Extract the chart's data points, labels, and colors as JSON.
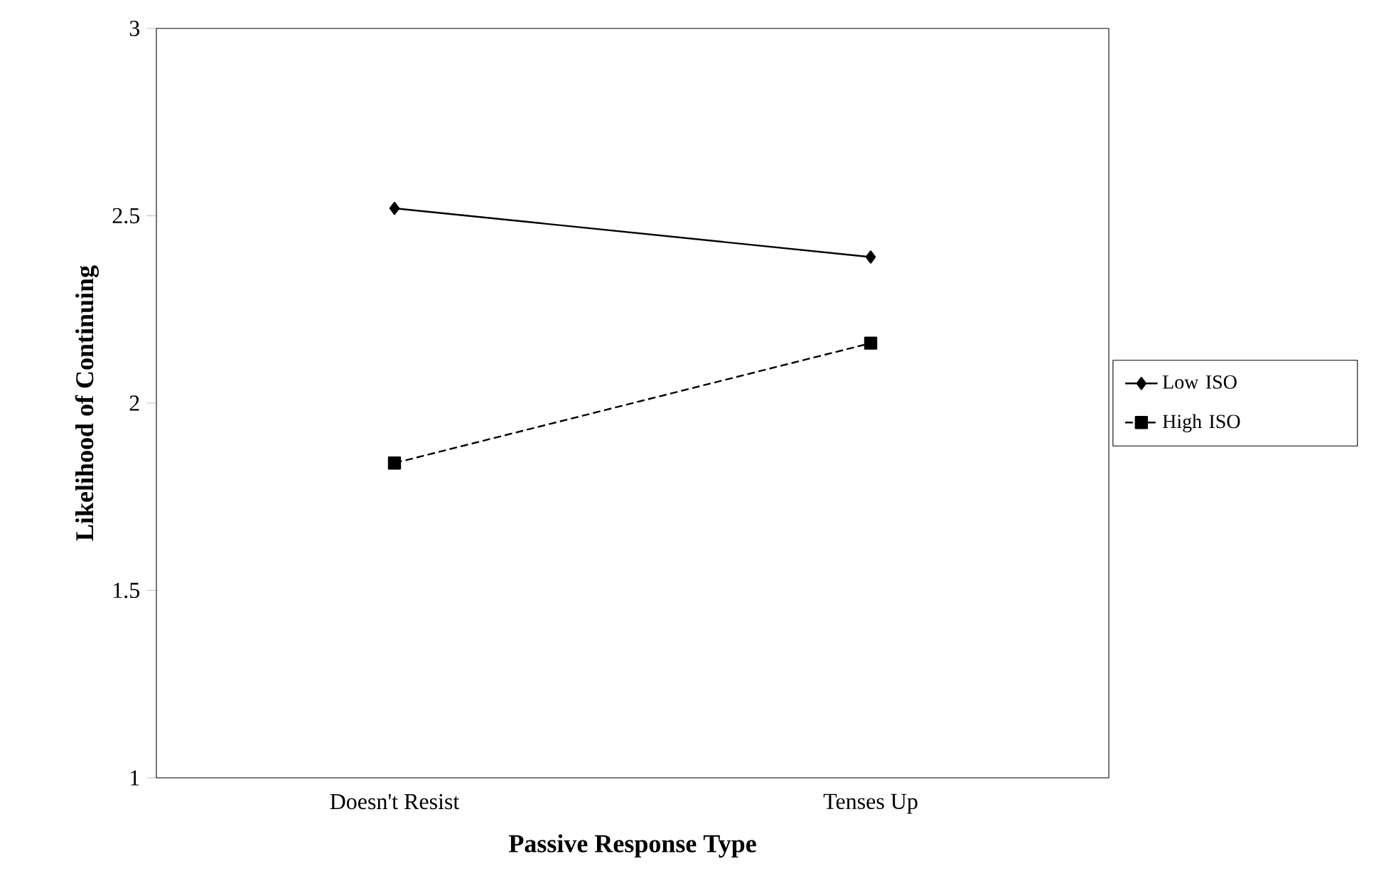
{
  "chart_data": {
    "type": "line",
    "xlabel": "Passive Response Type",
    "ylabel": "Likelihood of Continuing",
    "categories": [
      "Doesn't Resist",
      "Tenses Up"
    ],
    "ylim": [
      1,
      3
    ],
    "yticks": [
      1,
      1.5,
      2,
      2.5,
      3
    ],
    "legend": "right",
    "series": [
      {
        "name": "Low ISO",
        "color": "#000000",
        "values": [
          2.52,
          2.39
        ],
        "marker": "diamond",
        "line_style": "solid"
      },
      {
        "name": "High ISO",
        "color": "#000000",
        "values": [
          1.84,
          2.16
        ],
        "marker": "square",
        "line_style": "dashed"
      }
    ]
  }
}
